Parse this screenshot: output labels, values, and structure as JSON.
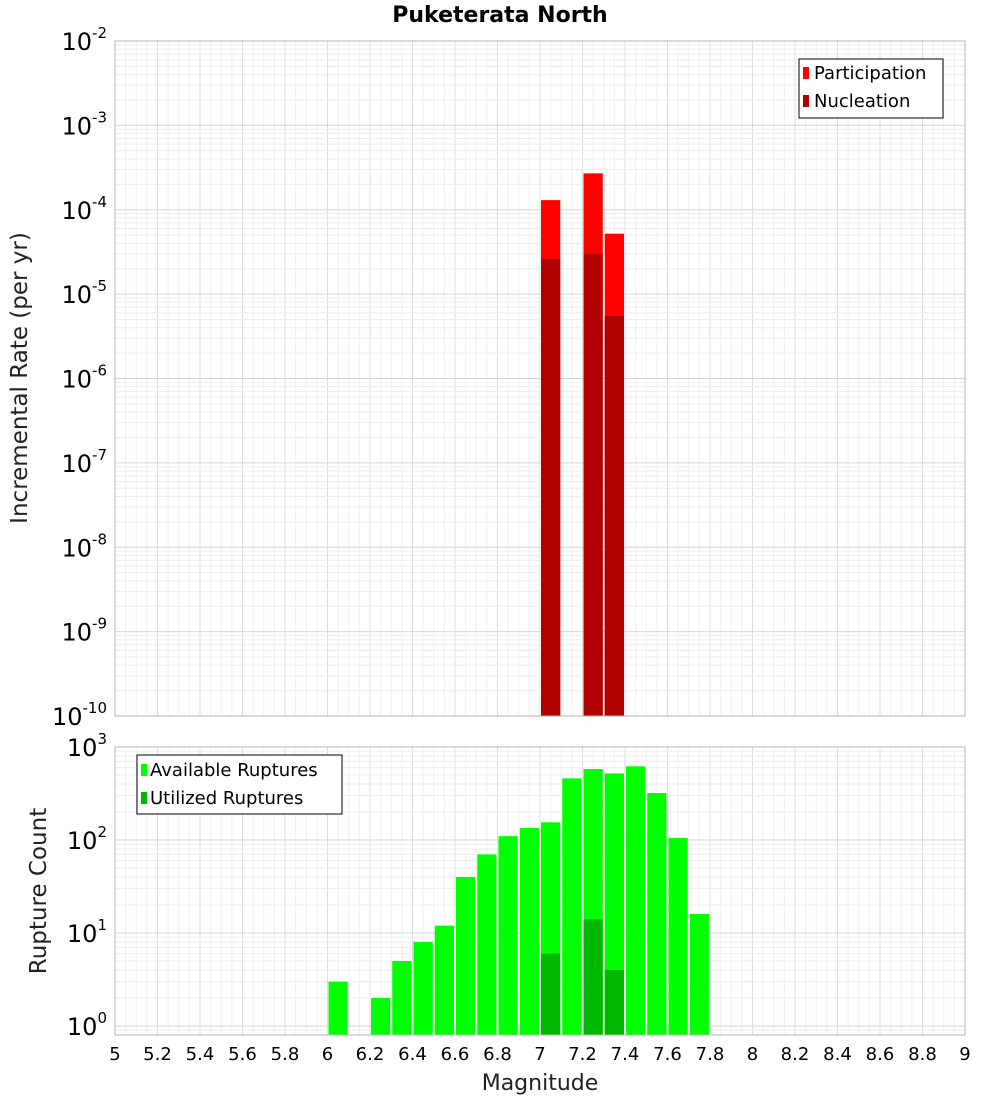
{
  "chart_data": [
    {
      "type": "bar",
      "title": "Puketerata North",
      "ylabel": "Incremental Rate (per yr)",
      "xlabel": "",
      "xlim": [
        5,
        9
      ],
      "ylim": [
        1e-10,
        0.01
      ],
      "yscale": "log",
      "ytick_exponents": [
        "-2",
        "-3",
        "-4",
        "-5",
        "-6",
        "-7",
        "-8",
        "-9",
        "-10"
      ],
      "legend": {
        "placement": "top-right"
      },
      "grid": true,
      "series": [
        {
          "name": "Participation",
          "color": "#ff0000",
          "x": [
            7.05,
            7.25,
            7.35
          ],
          "values": [
            0.00013,
            0.00027,
            5.2e-05
          ]
        },
        {
          "name": "Nucleation",
          "color": "#b00000",
          "x": [
            7.05,
            7.25,
            7.35
          ],
          "values": [
            2.6e-05,
            3e-05,
            5.5e-06
          ]
        }
      ]
    },
    {
      "type": "bar",
      "title": "",
      "ylabel": "Rupture Count",
      "xlabel": "Magnitude",
      "xlim": [
        5,
        9
      ],
      "ylim": [
        0.8,
        1000
      ],
      "yscale": "log",
      "ytick_exponents": [
        "3",
        "2",
        "1",
        "0"
      ],
      "xticks": [
        "5",
        "5.2",
        "5.4",
        "5.6",
        "5.8",
        "6",
        "6.2",
        "6.4",
        "6.6",
        "6.8",
        "7",
        "7.2",
        "7.4",
        "7.6",
        "7.8",
        "8",
        "8.2",
        "8.4",
        "8.6",
        "8.8",
        "9"
      ],
      "legend": {
        "placement": "top-left"
      },
      "grid": true,
      "series": [
        {
          "name": "Available Ruptures",
          "color": "#00ff00",
          "x": [
            6.05,
            6.25,
            6.35,
            6.45,
            6.55,
            6.65,
            6.75,
            6.85,
            6.95,
            7.05,
            7.15,
            7.25,
            7.35,
            7.45,
            7.55,
            7.65,
            7.75
          ],
          "values": [
            3,
            2,
            5,
            8,
            12,
            40,
            70,
            110,
            135,
            155,
            460,
            580,
            520,
            620,
            320,
            105,
            16
          ]
        },
        {
          "name": "Utilized Ruptures",
          "color": "#00b800",
          "x": [
            7.05,
            7.25,
            7.35
          ],
          "values": [
            6,
            14,
            4
          ]
        }
      ]
    }
  ]
}
